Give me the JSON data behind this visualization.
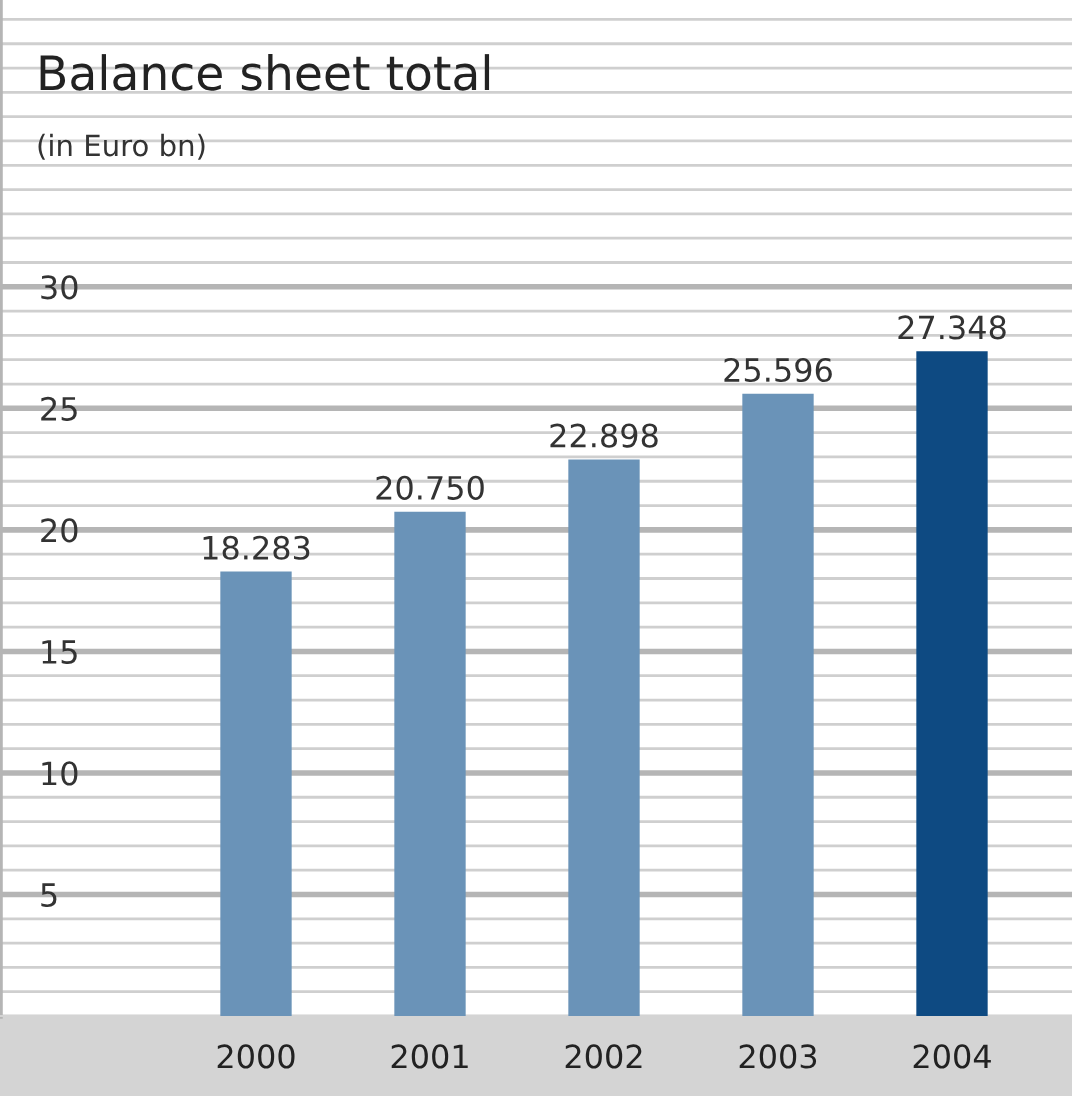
{
  "chart_data": {
    "type": "bar",
    "title": "Balance sheet total",
    "subtitle": "(in Euro bn)",
    "categories": [
      "2000",
      "2001",
      "2002",
      "2003",
      "2004"
    ],
    "values": [
      18.283,
      20.75,
      22.898,
      25.596,
      27.348
    ],
    "value_labels": [
      "18.283",
      "20.750",
      "22.898",
      "25.596",
      "27.348"
    ],
    "colors": [
      "#6a93b8",
      "#6a93b8",
      "#6a93b8",
      "#6a93b8",
      "#0e4a82"
    ],
    "ylim": [
      0,
      41.8
    ],
    "yticks": [
      5,
      10,
      15,
      20,
      25,
      30
    ],
    "grid": "y"
  }
}
